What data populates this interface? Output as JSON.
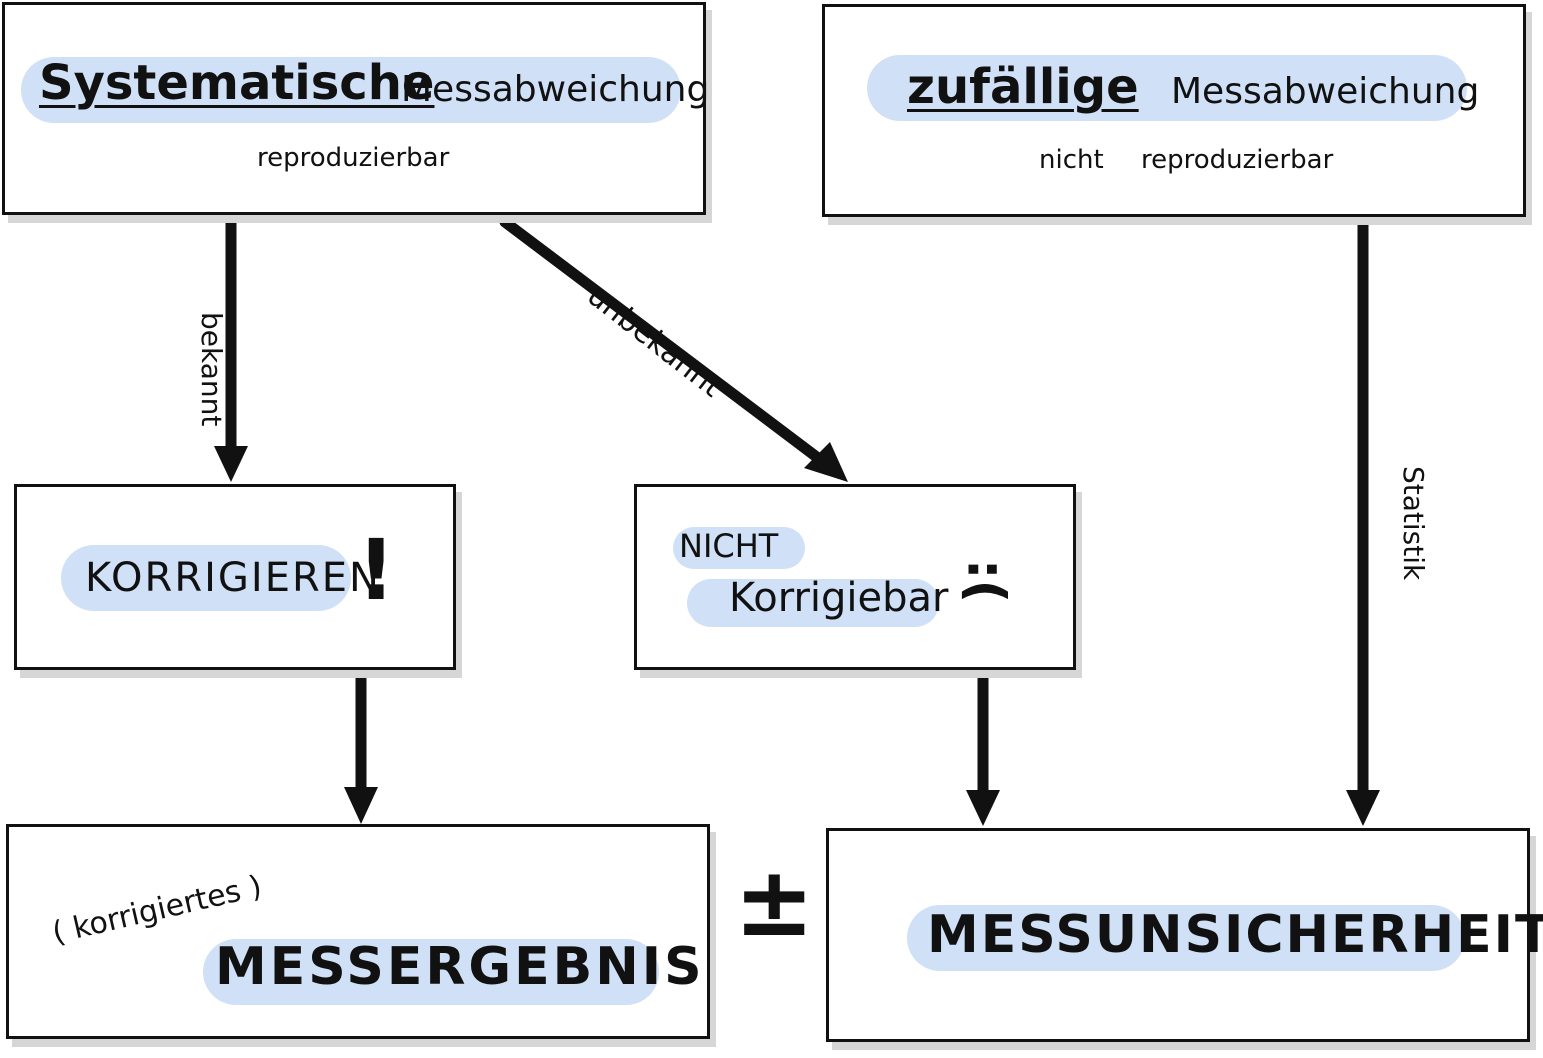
{
  "boxes": {
    "systematic": {
      "title": "Systematische",
      "title_suffix": "Messabweichung",
      "subtitle": "reproduzierbar"
    },
    "random": {
      "title": "zufällige",
      "title_suffix": "Messabweichung",
      "subtitle_1": "nicht",
      "subtitle_2": "reproduzierbar"
    },
    "correct": {
      "label": "KORRIGIEREN",
      "mark": "!"
    },
    "not_correctable": {
      "label_1": "NICHT",
      "label_2": "Korrigiebar",
      "emoticon": ":("
    },
    "result": {
      "prefix": "( korrigiertes )",
      "label": "MESSERGEBNIS"
    },
    "uncertainty": {
      "label": "MESSUNSICHERHEIT"
    }
  },
  "arrows": {
    "known": "bekannt",
    "unknown": "unbekannt",
    "statistics": "Statistik"
  },
  "operator": "±",
  "colors": {
    "highlight": "#cfe0f7",
    "ink": "#111111",
    "shadow": "#d6d6d6"
  }
}
